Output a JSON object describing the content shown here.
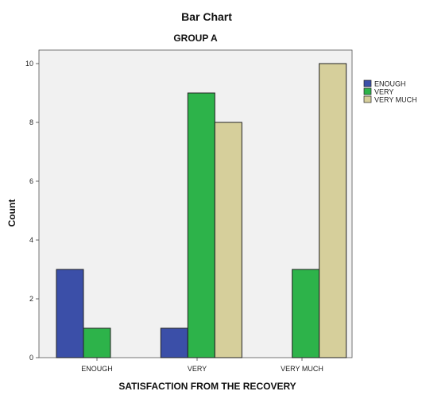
{
  "chart_data": {
    "type": "bar",
    "title": "Bar Chart",
    "subtitle": "GROUP A",
    "xlabel": "SATISFACTION FROM THE RECOVERY",
    "ylabel": "Count",
    "categories": [
      "ENOUGH",
      "VERY",
      "VERY MUCH"
    ],
    "ylim": [
      0,
      11
    ],
    "yticks": [
      0,
      2,
      4,
      6,
      8,
      10
    ],
    "grid": false,
    "legend_position": "right",
    "series": [
      {
        "name": "ENOUGH",
        "color": "#3B4FA8",
        "values": [
          3,
          1,
          0
        ]
      },
      {
        "name": "VERY",
        "color": "#2DB34A",
        "values": [
          1,
          9,
          3
        ]
      },
      {
        "name": "VERY MUCH",
        "color": "#D6CF9B",
        "values": [
          0,
          8,
          10
        ]
      }
    ],
    "plot_background": "#F1F1F1"
  }
}
